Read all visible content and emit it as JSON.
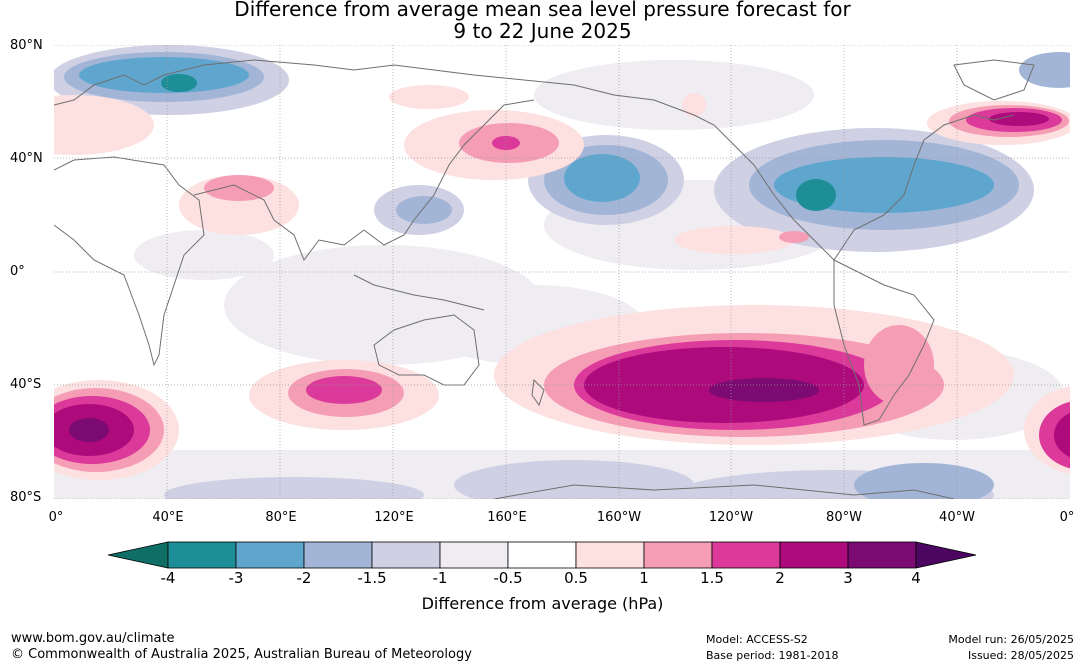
{
  "title_line1": "Difference from average mean sea level pressure forecast for",
  "title_line2": "9 to 22 June 2025",
  "lat_labels": [
    "80°N",
    "40°N",
    "0°",
    "40°S",
    "80°S"
  ],
  "lon_labels": [
    "0°",
    "40°E",
    "80°E",
    "120°E",
    "160°E",
    "160°W",
    "120°W",
    "80°W",
    "40°W",
    "0°"
  ],
  "legend": {
    "title": "Difference from average (hPa)",
    "ticks": [
      "-4",
      "-3",
      "-2",
      "-1.5",
      "-1",
      "-0.5",
      "0.5",
      "1",
      "1.5",
      "2",
      "3",
      "4"
    ],
    "colors": [
      "#0f6e66",
      "#1e8e96",
      "#5fa6ce",
      "#a3b5d6",
      "#cfd0e4",
      "#efecf2",
      "#ffffff",
      "#fde0e0",
      "#f59db5",
      "#db3a9a",
      "#ad0b7c",
      "#7b0a72",
      "#4c0560"
    ]
  },
  "footer": {
    "url": "www.bom.gov.au/climate",
    "copyright": "© Commonwealth of Australia 2025, Australian Bureau of Meteorology",
    "model": "Model: ACCESS-S2",
    "base_period": "Base period: 1981-2018",
    "model_run": "Model run: 26/05/2025",
    "issued": "Issued: 28/05/2025"
  }
}
